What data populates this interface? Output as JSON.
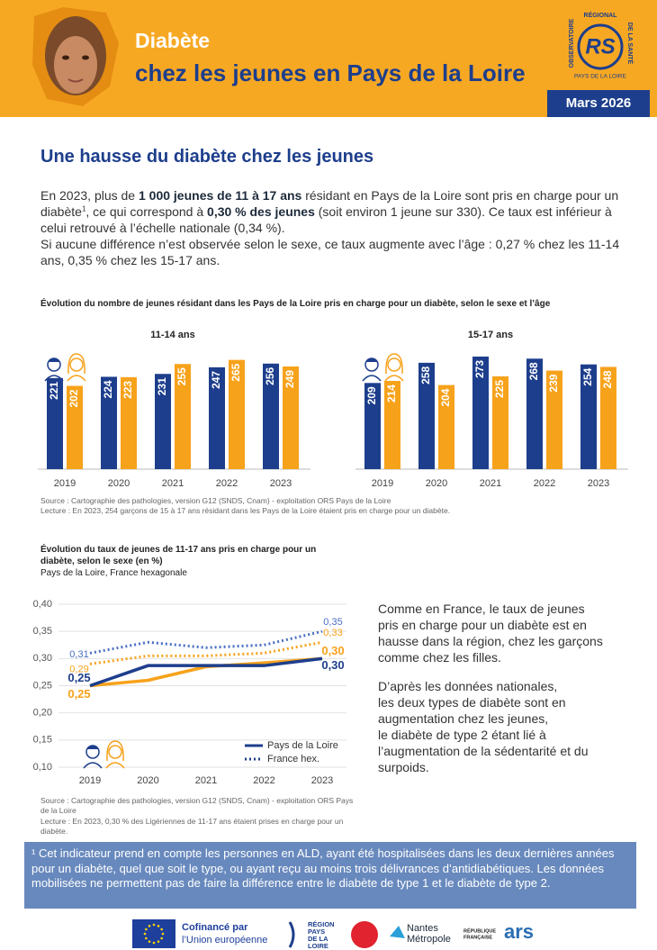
{
  "header": {
    "title_line1": "Diabète",
    "title_line2": "chez les jeunes en Pays de la Loire",
    "date": "Mars 2026",
    "logo": {
      "left": "OBSERVATOIRE",
      "top": "RÉGIONAL",
      "right": "DE LA SANTÉ",
      "mark": "RS",
      "bottom": "PAYS DE LA LOIRE"
    }
  },
  "section_title": "Une hausse du diabète chez les jeunes",
  "intro": {
    "paragraphs": [
      [
        {
          "text": "En 2023, plus de "
        },
        {
          "text": "1 000 jeunes de 11 à 17 ans",
          "style": "bold"
        },
        {
          "text": " résidant en Pays de la Loire sont pris en charge pour un diabète"
        },
        {
          "text": "1",
          "style": "sup"
        },
        {
          "text": ", ce qui correspond à "
        },
        {
          "text": "0,30 % des jeunes",
          "style": "bold"
        },
        {
          "text": " (soit environ 1 jeune sur 330). Ce taux est inférieur à celui retrouvé à l’échelle nationale (0,34 %)."
        }
      ],
      [
        {
          "text": "Si aucune différence n’est observée selon le sexe, ce taux augmente avec l’âge : 0,27 % chez les 11-14 ans, 0,35 % chez les 15-17 ans."
        }
      ]
    ]
  },
  "bar_chart": {
    "type": "bar",
    "title": "Évolution du nombre de jeunes résidant dans les Pays de la Loire pris en charge pour un diabète, selon le sexe et l’âge",
    "panels": [
      {
        "title": "11-14 ans",
        "categories": [
          "2019",
          "2020",
          "2021",
          "2022",
          "2023"
        ],
        "series": [
          {
            "color": "#1d3e8c",
            "values": [
              221,
              224,
              231,
              247,
              256
            ]
          },
          {
            "color": "#f7a21b",
            "values": [
              202,
              223,
              255,
              265,
              249
            ]
          }
        ]
      },
      {
        "title": "15-17 ans",
        "categories": [
          "2019",
          "2020",
          "2021",
          "2022",
          "2023"
        ],
        "series": [
          {
            "color": "#1d3e8c",
            "values": [
              209,
              258,
              273,
              268,
              254
            ]
          },
          {
            "color": "#f7a21b",
            "values": [
              214,
              204,
              225,
              239,
              248
            ]
          }
        ]
      }
    ],
    "source": "Source : Cartographie des pathologies, version G12 (SNDS, Cnam) - exploitation ORS Pays de la Loire",
    "reading": "Lecture : En 2023, 254 garçons de 15 à 17 ans résidant dans les Pays de la Loire étaient pris en charge pour un diabète."
  },
  "line_chart": {
    "type": "line",
    "title": "Évolution du taux de jeunes de 11-17 ans pris en charge pour un diabète, selon le sexe (en %)",
    "subtitle": "Pays de la Loire, France hexagonale",
    "categories": [
      "2019",
      "2020",
      "2021",
      "2022",
      "2023"
    ],
    "ylim": [
      0.1,
      0.4
    ],
    "yticks": [
      {
        "value": 0.1,
        "label": "0,10"
      },
      {
        "value": 0.15,
        "label": "0,15"
      },
      {
        "value": 0.2,
        "label": "0,20"
      },
      {
        "value": 0.25,
        "label": "0,25"
      },
      {
        "value": 0.3,
        "label": "0,30"
      },
      {
        "value": 0.35,
        "label": "0,35"
      },
      {
        "value": 0.4,
        "label": "0,40"
      }
    ],
    "grid": true,
    "series": [
      {
        "color": "#4a6fc4",
        "style": "dotted",
        "values": [
          0.31,
          0.33,
          0.32,
          0.325,
          0.35
        ],
        "value_labels": [
          "0,31",
          null,
          null,
          null,
          "0,35"
        ]
      },
      {
        "color": "#f7a21b",
        "style": "dotted",
        "values": [
          0.29,
          0.305,
          0.305,
          0.31,
          0.33
        ],
        "value_labels": [
          "0,29",
          null,
          null,
          null,
          "0,33"
        ]
      },
      {
        "color": "#f7a21b",
        "style": "solid",
        "values": [
          0.25,
          0.26,
          0.285,
          0.292,
          0.3
        ],
        "value_labels": [
          "0,25",
          null,
          null,
          null,
          "0,30"
        ]
      },
      {
        "color": "#1d3e8c",
        "style": "solid",
        "values": [
          0.25,
          0.287,
          0.287,
          0.287,
          0.3
        ],
        "value_labels": [
          "0,25",
          null,
          null,
          null,
          "0,30"
        ]
      }
    ],
    "legend": [
      {
        "label": "Pays de la Loire",
        "style": "solid"
      },
      {
        "label": "France hex.",
        "style": "dotted"
      }
    ],
    "source": "Source : Cartographie des pathologies, version G12 (SNDS, Cnam) - exploitation ORS Pays de la Loire",
    "reading": "Lecture : En 2023, 0,30 % des Ligériennes de 11-17 ans étaient prises en charge pour un diabète."
  },
  "right_text": {
    "paragraphs": [
      [
        "Comme en France, le taux de jeunes",
        "pris en charge pour un diabète est en",
        "hausse dans la région, chez les garçons",
        "comme chez les filles."
      ],
      [
        "D’après les données nationales,",
        "les deux types de diabète sont en",
        "augmentation chez les jeunes,",
        "le diabète de type 2 étant lié à",
        "l’augmentation de la sédentarité et du",
        "surpoids."
      ]
    ]
  },
  "footnote": "¹ Cet indicateur prend en compte les personnes en ALD, ayant été hospitalisées dans les deux dernières années pour un diabète, quel que soit le type, ou ayant reçu au moins trois délivrances d’antidiabétiques. Les données mobilisées ne permettent pas de faire la différence entre le diabète de type 1 et le diabète de type 2.",
  "footer": {
    "eu": [
      "Cofinancé par",
      "l’Union européenne"
    ],
    "region": [
      "RÉGION",
      "PAYS",
      "DE LA",
      "LOIRE"
    ],
    "nantes": [
      "Nantes",
      "Métropole"
    ],
    "republique": [
      "RÉPUBLIQUE",
      "FRANÇAISE"
    ],
    "ars": "ars"
  }
}
